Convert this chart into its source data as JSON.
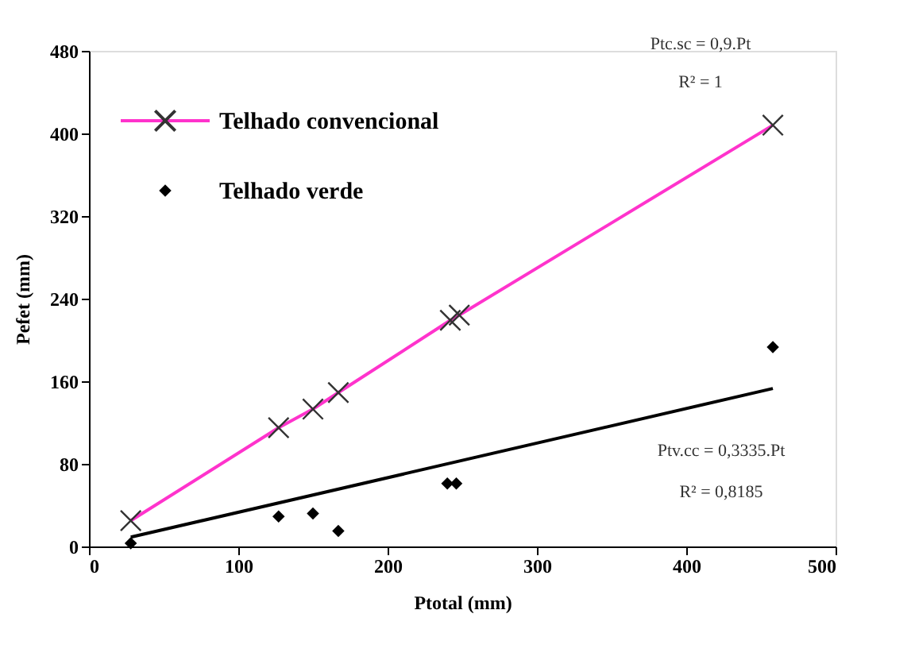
{
  "chart_data": {
    "type": "scatter",
    "xlabel": "Ptotal (mm)",
    "ylabel": "Pefet (mm)",
    "xlim": [
      0,
      500
    ],
    "xticks": [
      0,
      100,
      200,
      300,
      400,
      500
    ],
    "ylim": [
      0,
      480
    ],
    "yticks": [
      0,
      80,
      160,
      240,
      320,
      400,
      480
    ],
    "grid": false,
    "legend": "top left",
    "series": [
      {
        "name": "Telhado convencional",
        "type": "line",
        "marker": "cross",
        "color": "#ff33cc",
        "x": [
          28,
          127,
          150,
          167,
          242,
          248,
          458
        ],
        "values": [
          25,
          115,
          133,
          149,
          219,
          224,
          408
        ]
      },
      {
        "name": "Telhado verde",
        "marker": "diamond",
        "color": "#000000",
        "x": [
          28,
          127,
          150,
          167,
          240,
          246,
          458
        ],
        "values": [
          3,
          29,
          32,
          15,
          61,
          61,
          193
        ]
      },
      {
        "type": "line",
        "marker": "none",
        "color": "#000000",
        "x": [
          28,
          458
        ],
        "values": [
          9,
          153
        ]
      }
    ],
    "annotations": [
      "Ptc.sc = 0,9.Pt",
      "R² = 1",
      "Ptv.cc = 0,3335.Pt",
      "R² = 0,8185"
    ]
  }
}
